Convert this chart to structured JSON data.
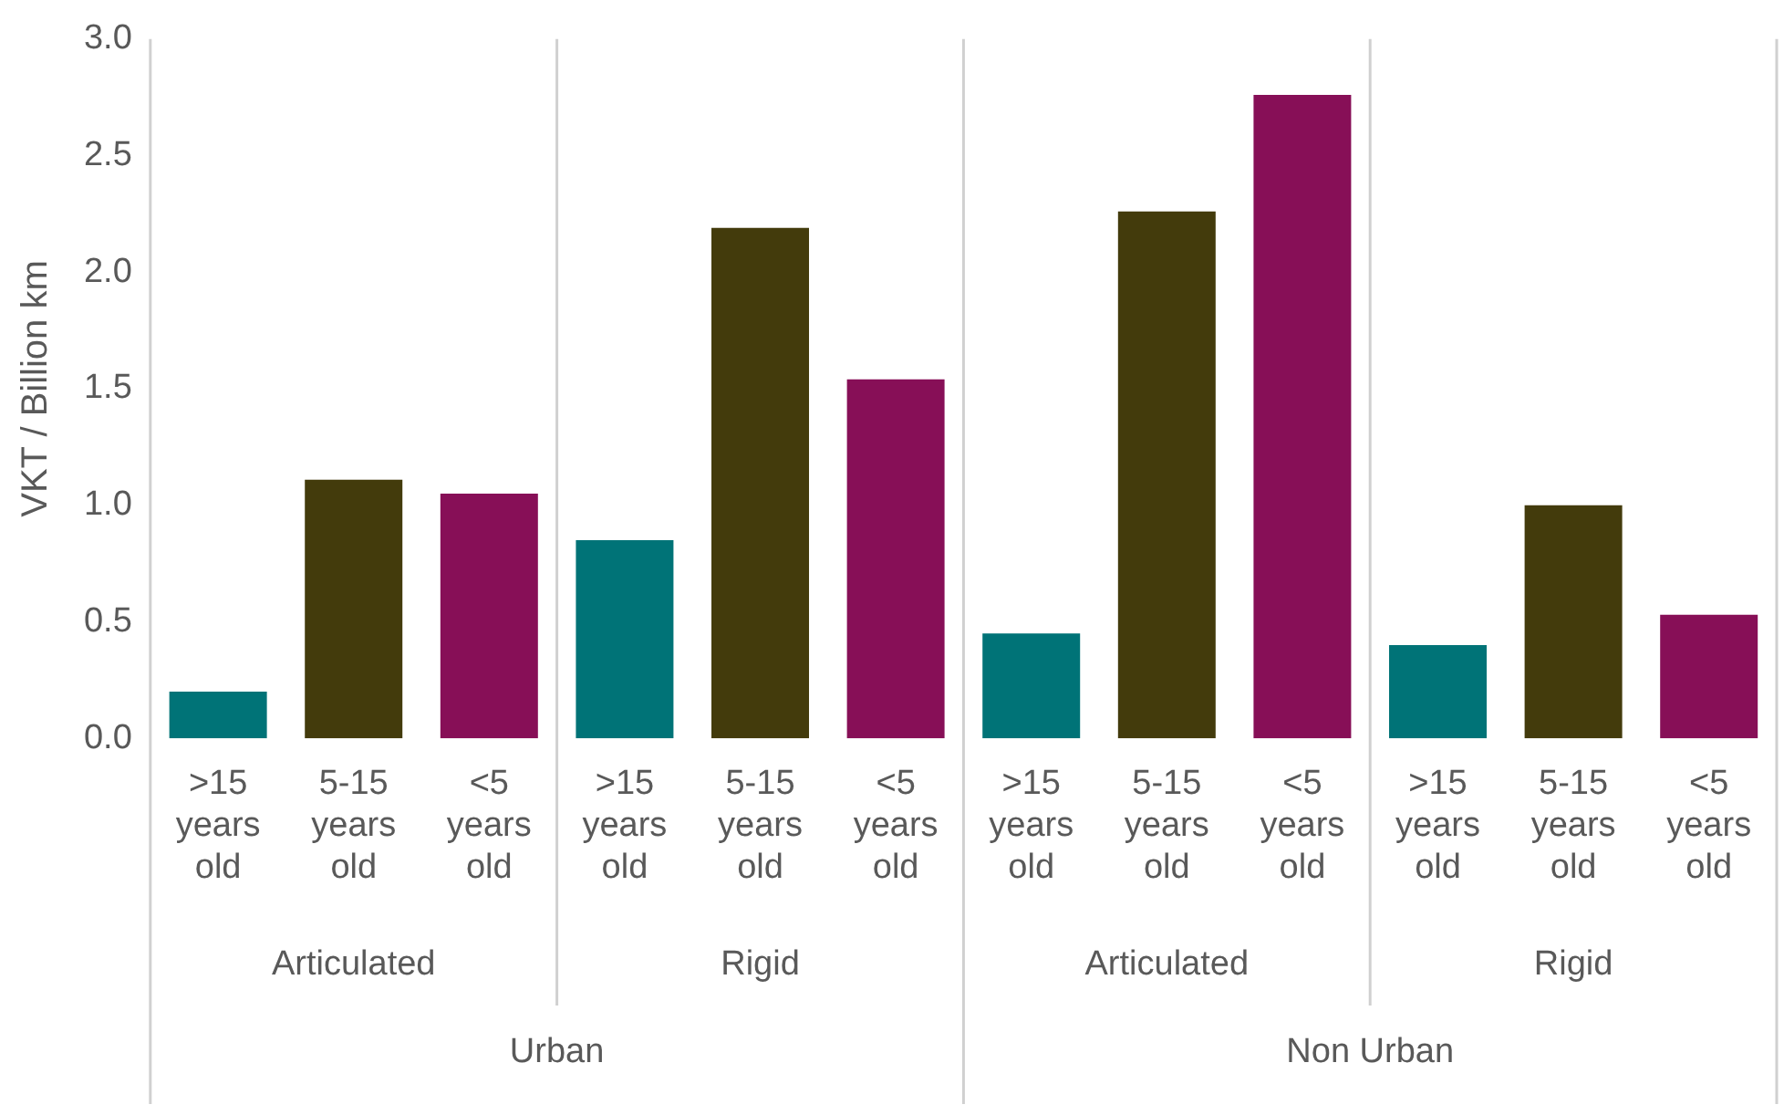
{
  "chart_data": {
    "type": "bar",
    "ylabel": "VKT / Billion km",
    "categories": [
      ">15 years old",
      "5-15 years old",
      "<5 years old",
      ">15 years old",
      "5-15 years old",
      "<5 years old",
      ">15 years old",
      "5-15 years old",
      "<5 years old",
      ">15 years old",
      "5-15 years old",
      "<5 years old"
    ],
    "values": [
      0.2,
      1.11,
      1.05,
      0.85,
      2.19,
      1.54,
      0.45,
      2.26,
      2.76,
      0.4,
      1.0,
      0.53
    ],
    "colors": [
      "#007377",
      "#433b0c",
      "#870f57",
      "#007377",
      "#433b0c",
      "#870f57",
      "#007377",
      "#433b0c",
      "#870f57",
      "#007377",
      "#433b0c",
      "#870f57"
    ],
    "ylim": [
      0,
      3
    ],
    "yticks": [
      {
        "value": 0,
        "label": "0.0"
      },
      {
        "value": 0.5,
        "label": "0.5"
      },
      {
        "value": 1,
        "label": "1.0"
      },
      {
        "value": 1.5,
        "label": "1.5"
      },
      {
        "value": 2,
        "label": "2.0"
      },
      {
        "value": 2.5,
        "label": "2.5"
      },
      {
        "value": 3,
        "label": "3.0"
      }
    ],
    "annotations": [
      "Articulated",
      "Rigid",
      "Articulated",
      "Rigid",
      "Urban",
      "Non Urban"
    ],
    "grid": false,
    "legend": false
  }
}
